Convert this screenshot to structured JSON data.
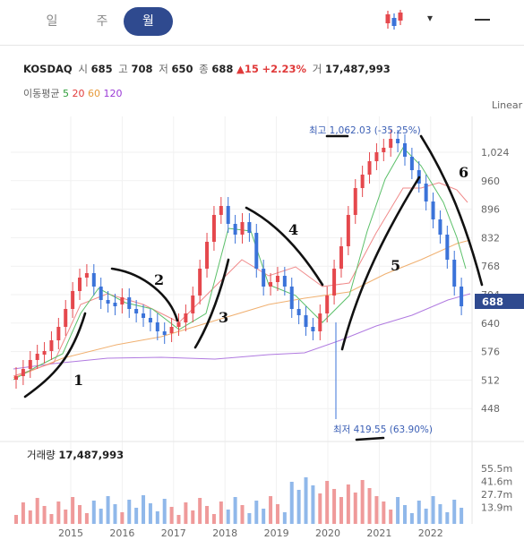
{
  "tabs": [
    "일",
    "주",
    "월"
  ],
  "active_tab": 2,
  "toolbar": {
    "chart_type_icon": "candlestick-icon",
    "dropdown_icon": "chevron-down-icon",
    "minimize_icon": "minus-icon"
  },
  "info": {
    "symbol": "KOSDAQ",
    "open_label": "시",
    "open": "685",
    "high_label": "고",
    "high": "708",
    "low_label": "저",
    "low": "650",
    "close_label": "종",
    "close": "688",
    "change": "▲15",
    "change_pct": "+2.23%",
    "volume_label": "거",
    "volume": "17,487,993"
  },
  "ma": {
    "label": "이동평균",
    "p5": "5",
    "p20": "20",
    "p60": "60",
    "p120": "120",
    "colors": {
      "p5": "#2e9e3a",
      "p20": "#e23b3b",
      "p60": "#e69a3a",
      "p120": "#9b3ad6"
    }
  },
  "scale_mode": "Linear",
  "price_axis": [
    "1,024",
    "960",
    "896",
    "832",
    "768",
    "704",
    "640",
    "576",
    "512",
    "448"
  ],
  "current_price": "688",
  "high_marker": "최고 1,062.03 (-35.25%)",
  "low_marker": "최저 419.55 (63.90%)",
  "volume_panel": {
    "label": "거래량",
    "value": "17,487,993",
    "axis": [
      "55.5m",
      "41.6m",
      "27.7m",
      "13.9m"
    ]
  },
  "x_axis": [
    "2015",
    "2016",
    "2017",
    "2018",
    "2019",
    "2020",
    "2021",
    "2022"
  ],
  "annotations": [
    "1",
    "2",
    "3",
    "4",
    "5",
    "6"
  ],
  "colors": {
    "up": "#e5484d",
    "down": "#3b73d9",
    "accent": "#2f4a8f",
    "vol_up": "#ef9a9a",
    "vol_down": "#90b8ea"
  }
}
